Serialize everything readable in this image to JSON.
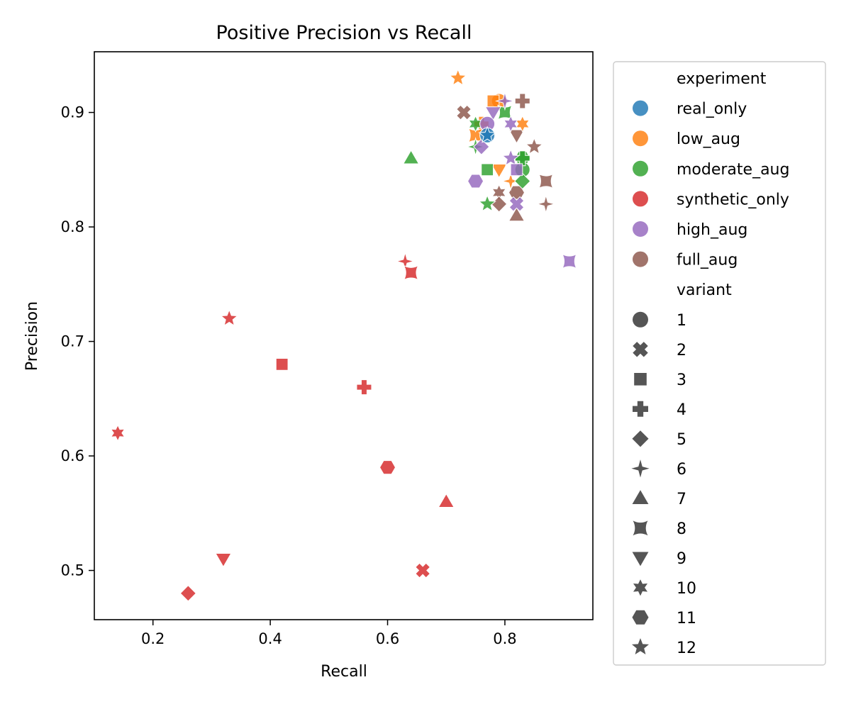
{
  "chart_data": {
    "type": "scatter",
    "title": "Positive Precision vs Recall",
    "xlabel": "Recall",
    "ylabel": "Precision",
    "xlim": [
      0.1,
      0.95
    ],
    "ylim": [
      0.457,
      0.953
    ],
    "xticks": [
      "0.2",
      "0.4",
      "0.6",
      "0.8"
    ],
    "yticks": [
      "0.5",
      "0.6",
      "0.7",
      "0.8",
      "0.9"
    ],
    "grid": false,
    "legend": {
      "placement": "outside-right",
      "hue_title": "experiment",
      "style_title": "variant",
      "hue_entries": [
        {
          "name": "real_only",
          "color": "#1f77b4"
        },
        {
          "name": "low_aug",
          "color": "#ff7f0e"
        },
        {
          "name": "moderate_aug",
          "color": "#2ca02c"
        },
        {
          "name": "synthetic_only",
          "color": "#d62728"
        },
        {
          "name": "high_aug",
          "color": "#9467bd"
        },
        {
          "name": "full_aug",
          "color": "#8c564b"
        }
      ],
      "style_entries": [
        {
          "name": "1",
          "marker": "circle"
        },
        {
          "name": "2",
          "marker": "x"
        },
        {
          "name": "3",
          "marker": "square"
        },
        {
          "name": "4",
          "marker": "plus"
        },
        {
          "name": "5",
          "marker": "diamond"
        },
        {
          "name": "6",
          "marker": "star4"
        },
        {
          "name": "7",
          "marker": "triangle-up"
        },
        {
          "name": "8",
          "marker": "concave-square"
        },
        {
          "name": "9",
          "marker": "triangle-down"
        },
        {
          "name": "10",
          "marker": "star6"
        },
        {
          "name": "11",
          "marker": "hexagon"
        },
        {
          "name": "12",
          "marker": "star5"
        }
      ]
    },
    "series": [
      {
        "name": "full_aug",
        "points": [
          {
            "x": 0.73,
            "y": 0.9,
            "variant": "2"
          },
          {
            "x": 0.83,
            "y": 0.91,
            "variant": "4"
          },
          {
            "x": 0.85,
            "y": 0.87,
            "variant": "12"
          },
          {
            "x": 0.87,
            "y": 0.84,
            "variant": "8"
          },
          {
            "x": 0.87,
            "y": 0.82,
            "variant": "6"
          },
          {
            "x": 0.82,
            "y": 0.83,
            "variant": "11"
          },
          {
            "x": 0.82,
            "y": 0.81,
            "variant": "7"
          },
          {
            "x": 0.79,
            "y": 0.83,
            "variant": "10"
          },
          {
            "x": 0.79,
            "y": 0.82,
            "variant": "5"
          },
          {
            "x": 0.82,
            "y": 0.88,
            "variant": "9"
          }
        ]
      },
      {
        "name": "low_aug",
        "points": [
          {
            "x": 0.72,
            "y": 0.93,
            "variant": "12"
          },
          {
            "x": 0.79,
            "y": 0.91,
            "variant": "1"
          },
          {
            "x": 0.78,
            "y": 0.91,
            "variant": "3"
          },
          {
            "x": 0.79,
            "y": 0.85,
            "variant": "9"
          },
          {
            "x": 0.83,
            "y": 0.89,
            "variant": "10"
          },
          {
            "x": 0.81,
            "y": 0.84,
            "variant": "6"
          },
          {
            "x": 0.76,
            "y": 0.89,
            "variant": "4"
          },
          {
            "x": 0.75,
            "y": 0.88,
            "variant": "8"
          }
        ]
      },
      {
        "name": "moderate_aug",
        "points": [
          {
            "x": 0.64,
            "y": 0.86,
            "variant": "7"
          },
          {
            "x": 0.83,
            "y": 0.86,
            "variant": "11"
          },
          {
            "x": 0.83,
            "y": 0.85,
            "variant": "1"
          },
          {
            "x": 0.83,
            "y": 0.84,
            "variant": "5"
          },
          {
            "x": 0.77,
            "y": 0.85,
            "variant": "3"
          },
          {
            "x": 0.77,
            "y": 0.82,
            "variant": "12"
          },
          {
            "x": 0.75,
            "y": 0.89,
            "variant": "10"
          },
          {
            "x": 0.75,
            "y": 0.87,
            "variant": "6"
          },
          {
            "x": 0.8,
            "y": 0.9,
            "variant": "8"
          },
          {
            "x": 0.83,
            "y": 0.86,
            "variant": "4"
          }
        ]
      },
      {
        "name": "synthetic_only",
        "points": [
          {
            "x": 0.63,
            "y": 0.77,
            "variant": "6"
          },
          {
            "x": 0.64,
            "y": 0.76,
            "variant": "8"
          },
          {
            "x": 0.33,
            "y": 0.72,
            "variant": "12"
          },
          {
            "x": 0.42,
            "y": 0.68,
            "variant": "3"
          },
          {
            "x": 0.56,
            "y": 0.66,
            "variant": "4"
          },
          {
            "x": 0.14,
            "y": 0.62,
            "variant": "10"
          },
          {
            "x": 0.6,
            "y": 0.59,
            "variant": "11"
          },
          {
            "x": 0.7,
            "y": 0.56,
            "variant": "7"
          },
          {
            "x": 0.32,
            "y": 0.51,
            "variant": "9"
          },
          {
            "x": 0.66,
            "y": 0.5,
            "variant": "2"
          },
          {
            "x": 0.26,
            "y": 0.48,
            "variant": "5"
          }
        ]
      },
      {
        "name": "high_aug",
        "points": [
          {
            "x": 0.75,
            "y": 0.84,
            "variant": "11"
          },
          {
            "x": 0.91,
            "y": 0.77,
            "variant": "8"
          },
          {
            "x": 0.78,
            "y": 0.9,
            "variant": "9"
          },
          {
            "x": 0.8,
            "y": 0.91,
            "variant": "6"
          },
          {
            "x": 0.81,
            "y": 0.89,
            "variant": "10"
          },
          {
            "x": 0.81,
            "y": 0.86,
            "variant": "12"
          },
          {
            "x": 0.82,
            "y": 0.85,
            "variant": "3"
          },
          {
            "x": 0.82,
            "y": 0.82,
            "variant": "2"
          },
          {
            "x": 0.76,
            "y": 0.87,
            "variant": "5"
          },
          {
            "x": 0.77,
            "y": 0.89,
            "variant": "1"
          }
        ]
      },
      {
        "name": "real_only",
        "points": [
          {
            "x": 0.77,
            "y": 0.88,
            "variant": "1"
          },
          {
            "x": 0.77,
            "y": 0.88,
            "variant": "12"
          }
        ]
      }
    ]
  }
}
